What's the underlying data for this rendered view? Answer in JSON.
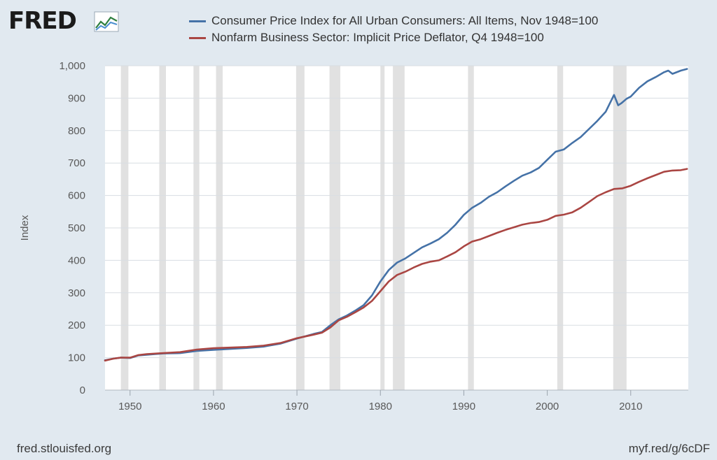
{
  "brand": {
    "name": "FRED"
  },
  "footer": {
    "source": "fred.stlouisfed.org",
    "short_url": "myf.red/g/6cDF"
  },
  "chart_data": {
    "type": "line",
    "ylabel": "Index",
    "xlabel": "",
    "ylim": [
      0,
      1000
    ],
    "xlim": [
      1947,
      2016.9
    ],
    "yticks": [
      0,
      100,
      200,
      300,
      400,
      500,
      600,
      700,
      800,
      900,
      1000
    ],
    "ytick_labels": [
      "0",
      "100",
      "200",
      "300",
      "400",
      "500",
      "600",
      "700",
      "800",
      "900",
      "1,000"
    ],
    "xticks": [
      1950,
      1960,
      1970,
      1980,
      1990,
      2000,
      2010
    ],
    "xtick_labels": [
      "1950",
      "1960",
      "1970",
      "1980",
      "1990",
      "2000",
      "2010"
    ],
    "grid": "horizontal",
    "legend_position": "top",
    "recessions": [
      [
        1948.9,
        1949.8
      ],
      [
        1953.5,
        1954.3
      ],
      [
        1957.6,
        1958.3
      ],
      [
        1960.3,
        1961.1
      ],
      [
        1969.9,
        1970.9
      ],
      [
        1973.9,
        1975.2
      ],
      [
        1980.0,
        1980.5
      ],
      [
        1981.5,
        1982.9
      ],
      [
        1990.5,
        1991.2
      ],
      [
        2001.2,
        2001.9
      ],
      [
        2007.9,
        2009.5
      ]
    ],
    "recession_color": "#e1e1e1",
    "series": [
      {
        "name": "Consumer Price Index for All Urban Consumers: All Items, Nov 1948=100",
        "color": "#4572a7",
        "x": [
          1947,
          1948,
          1948.9,
          1950,
          1951,
          1952,
          1953,
          1954,
          1956,
          1958,
          1960,
          1962,
          1964,
          1966,
          1968,
          1970,
          1972,
          1973,
          1974,
          1975,
          1976,
          1977,
          1978,
          1979,
          1980,
          1981,
          1982,
          1983,
          1984,
          1985,
          1986,
          1987,
          1988,
          1989,
          1990,
          1991,
          1992,
          1993,
          1994,
          1995,
          1996,
          1997,
          1998,
          1999,
          2000,
          2001,
          2002,
          2003,
          2004,
          2005,
          2006,
          2007,
          2008,
          2008.5,
          2008.9,
          2009.5,
          2010,
          2011,
          2012,
          2013,
          2014,
          2014.5,
          2015,
          2016,
          2016.75
        ],
        "values": [
          92,
          97,
          100,
          99,
          107,
          109,
          111,
          113,
          114,
          121,
          124,
          127,
          130,
          134,
          143,
          159,
          173,
          179,
          200,
          218,
          230,
          245,
          262,
          292,
          335,
          370,
          393,
          406,
          423,
          440,
          452,
          465,
          485,
          510,
          540,
          562,
          577,
          596,
          610,
          628,
          645,
          661,
          671,
          685,
          710,
          735,
          742,
          762,
          780,
          805,
          830,
          858,
          910,
          878,
          885,
          898,
          905,
          932,
          952,
          965,
          980,
          985,
          975,
          985,
          990
        ]
      },
      {
        "name": "Nonfarm Business Sector: Implicit Price Deflator, Q4 1948=100",
        "color": "#aa4643",
        "x": [
          1947,
          1948,
          1948.9,
          1950,
          1951,
          1952,
          1954,
          1956,
          1958,
          1960,
          1962,
          1964,
          1966,
          1968,
          1970,
          1972,
          1973,
          1974,
          1975,
          1976,
          1977,
          1978,
          1979,
          1980,
          1981,
          1982,
          1983,
          1984,
          1985,
          1986,
          1987,
          1988,
          1989,
          1990,
          1991,
          1992,
          1993,
          1994,
          1995,
          1996,
          1997,
          1998,
          1999,
          2000,
          2001,
          2002,
          2003,
          2004,
          2005,
          2006,
          2007,
          2008,
          2009,
          2010,
          2011,
          2012,
          2013,
          2014,
          2015,
          2016,
          2016.75
        ],
        "values": [
          91,
          97,
          100,
          100,
          108,
          111,
          114,
          117,
          125,
          129,
          131,
          133,
          137,
          145,
          160,
          171,
          177,
          193,
          215,
          226,
          240,
          255,
          275,
          305,
          335,
          355,
          365,
          378,
          389,
          396,
          400,
          412,
          425,
          443,
          458,
          465,
          475,
          485,
          494,
          502,
          510,
          515,
          518,
          525,
          537,
          541,
          548,
          562,
          580,
          598,
          610,
          620,
          622,
          630,
          642,
          653,
          663,
          673,
          677,
          678,
          682
        ]
      }
    ]
  }
}
